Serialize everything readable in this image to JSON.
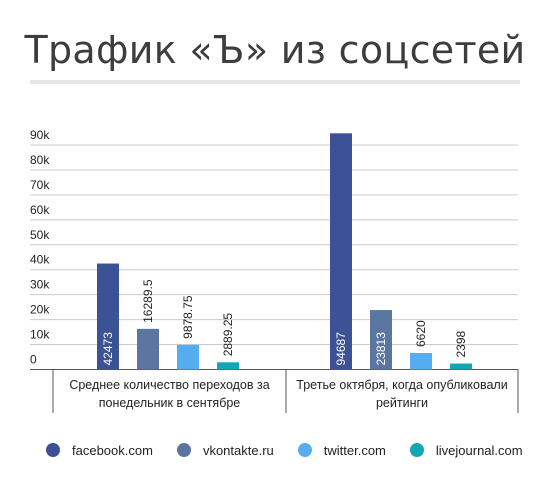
{
  "title": "Трафик «Ъ» из соцсетей",
  "chart_data": {
    "type": "bar",
    "categories": [
      "Среднее количество переходов за понедельник в сентябре",
      "Третье октября, когда опубликовали рейтинги"
    ],
    "category_lines": [
      [
        "Среднее количество переходов за",
        "понедельник в сентябре"
      ],
      [
        "Третье октября, когда опубликовали",
        "рейтинги"
      ]
    ],
    "series": [
      {
        "name": "facebook.com",
        "color": "#3b5294",
        "values": [
          42473,
          94687
        ],
        "labels": [
          "42473",
          "94687"
        ]
      },
      {
        "name": "vkontakte.ru",
        "color": "#5975a0",
        "values": [
          16289.5,
          23813
        ],
        "labels": [
          "16289.5",
          "23813"
        ]
      },
      {
        "name": "twitter.com",
        "color": "#55acee",
        "values": [
          9878.75,
          6620
        ],
        "labels": [
          "9878.75",
          "6620"
        ]
      },
      {
        "name": "livejournal.com",
        "color": "#12a7b4",
        "values": [
          2889.25,
          2398
        ],
        "labels": [
          "2889.25",
          "2398"
        ]
      }
    ],
    "ylim": [
      0,
      90000
    ],
    "yticks": [
      {
        "value": 0,
        "label": "0"
      },
      {
        "value": 10000,
        "label": "10k"
      },
      {
        "value": 20000,
        "label": "20k"
      },
      {
        "value": 30000,
        "label": "30k"
      },
      {
        "value": 40000,
        "label": "40k"
      },
      {
        "value": 50000,
        "label": "50k"
      },
      {
        "value": 60000,
        "label": "60k"
      },
      {
        "value": 70000,
        "label": "70k"
      },
      {
        "value": 80000,
        "label": "80k"
      },
      {
        "value": 90000,
        "label": "90k"
      }
    ],
    "grid": true,
    "legend_position": "bottom"
  }
}
